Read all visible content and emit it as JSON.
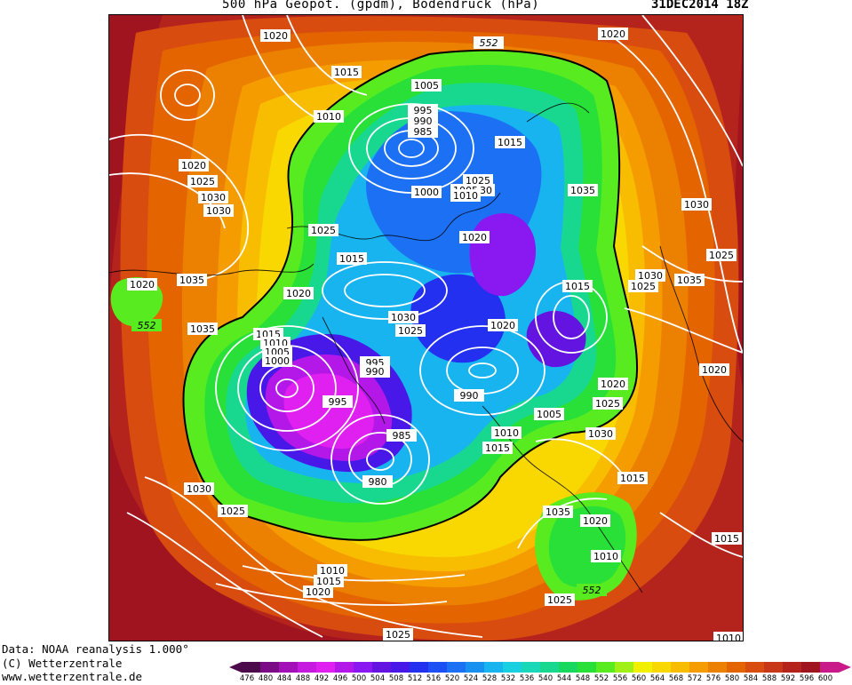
{
  "header": {
    "title": "500 hPa Geopot. (gpdm), Bodendruck (hPa)",
    "date": "31DEC2014 18Z"
  },
  "credits": {
    "line1": "Data: NOAA reanalysis 1.000°",
    "line2": "(C) Wetterzentrale",
    "line3": "www.wetterzentrale.de"
  },
  "legend": {
    "values": [
      "476",
      "480",
      "484",
      "488",
      "492",
      "496",
      "500",
      "504",
      "508",
      "512",
      "516",
      "520",
      "524",
      "528",
      "532",
      "536",
      "540",
      "544",
      "548",
      "552",
      "556",
      "560",
      "564",
      "568",
      "572",
      "576",
      "580",
      "584",
      "588",
      "592",
      "596",
      "600"
    ],
    "colors": [
      "#4b0a4a",
      "#7a0a86",
      "#a410b8",
      "#c61ae0",
      "#e020f0",
      "#b418e8",
      "#8a18f0",
      "#6414e0",
      "#4818e8",
      "#2430f0",
      "#1c50f4",
      "#1c70f4",
      "#1890f0",
      "#18b4f0",
      "#18d0e0",
      "#18d8b8",
      "#18d890",
      "#18d860",
      "#28e038",
      "#58ec20",
      "#a0f018",
      "#f0f000",
      "#f8d800",
      "#f8bc00",
      "#f49c00",
      "#ec8000",
      "#e46400",
      "#d84c10",
      "#c83818",
      "#b4241c",
      "#a01420",
      "#c81a88"
    ]
  },
  "map": {
    "contour_552": "552",
    "pressure_labels": [
      "1020",
      "1015",
      "1010",
      "1020",
      "1025",
      "1030",
      "1005",
      "995",
      "990",
      "985",
      "1015",
      "1025",
      "1030",
      "1035",
      "1000",
      "1005",
      "1010",
      "1020",
      "1025",
      "1015",
      "1020",
      "1035",
      "1020",
      "552",
      "1035",
      "1015",
      "1010",
      "1005",
      "1000",
      "995",
      "990",
      "1030",
      "1025",
      "1020",
      "995",
      "990",
      "1015",
      "1020",
      "1030",
      "1025",
      "1035",
      "1030",
      "1025",
      "1020",
      "985",
      "980",
      "1005",
      "1010",
      "1015",
      "1030",
      "1015",
      "1035",
      "1020",
      "1010",
      "1025",
      "552",
      "1010",
      "1015",
      "1020",
      "1030",
      "1025",
      "1025",
      "1015",
      "1010",
      "1020",
      "1025",
      "1030"
    ]
  }
}
